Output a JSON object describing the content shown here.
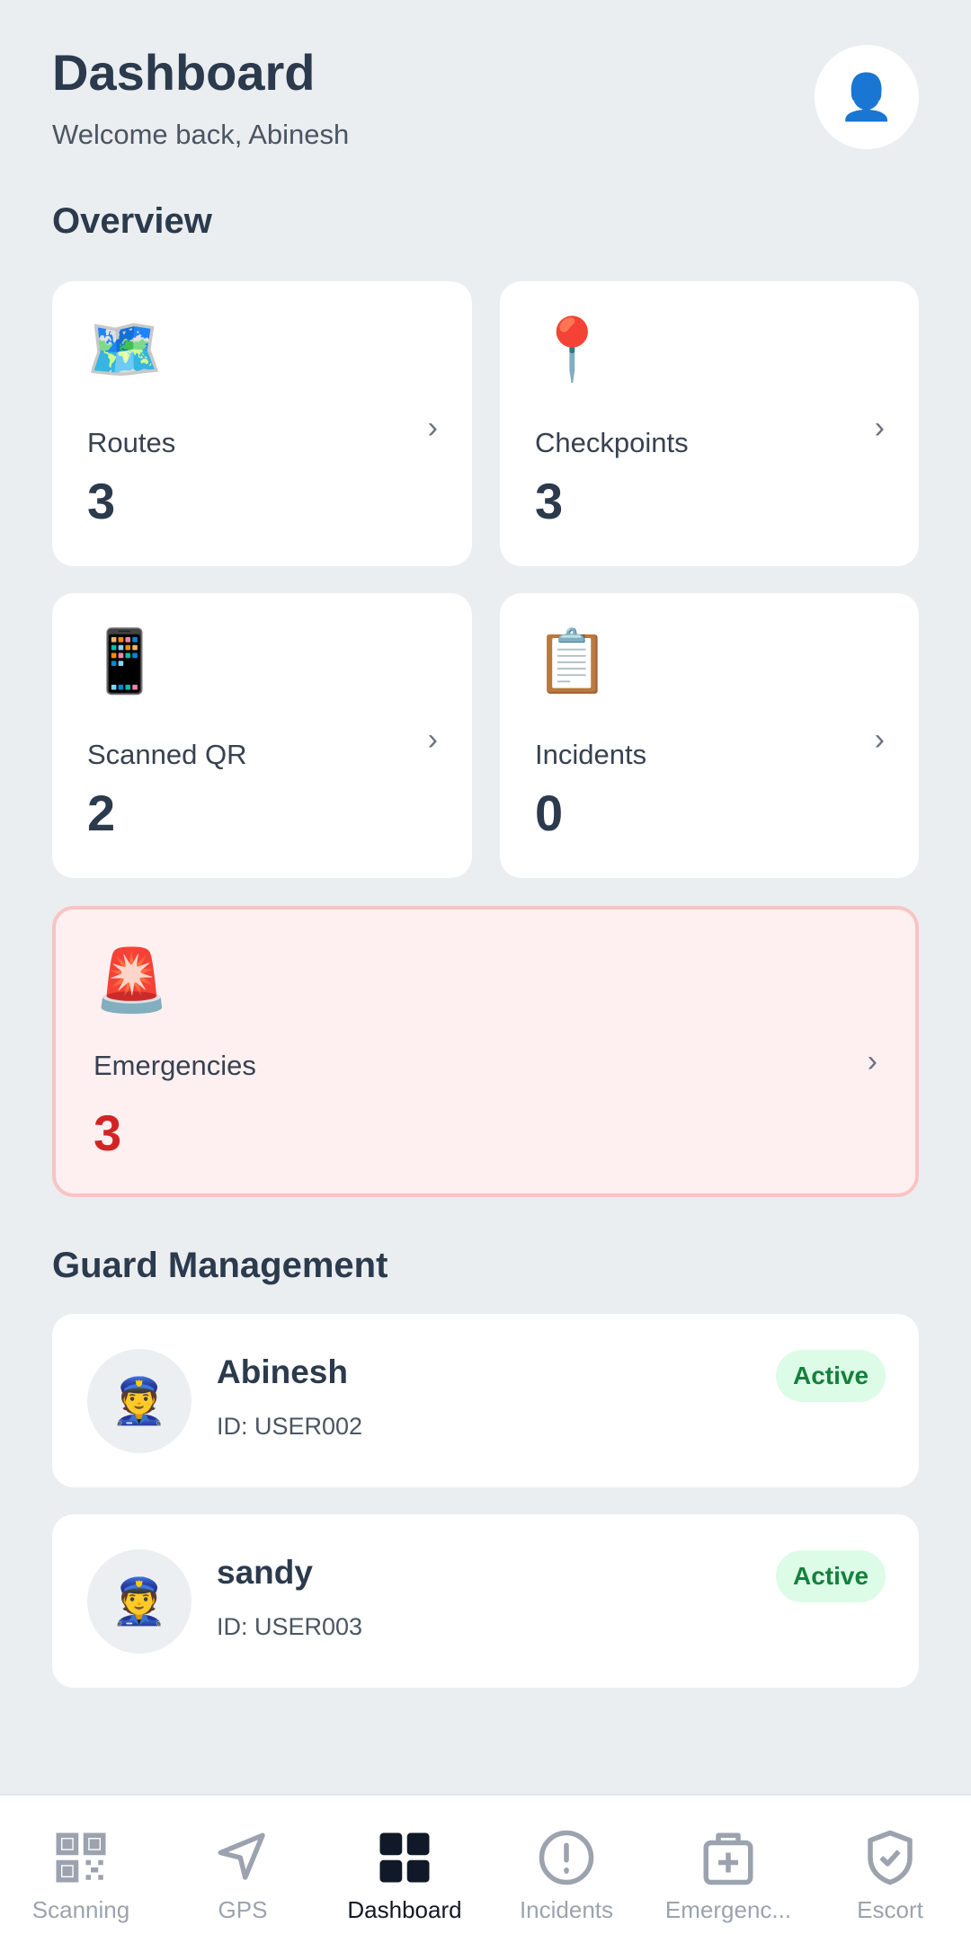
{
  "header": {
    "title": "Dashboard",
    "welcome": "Welcome back, Abinesh",
    "profile_icon": "👤"
  },
  "overview": {
    "heading": "Overview",
    "cards": [
      {
        "icon": "🗺️",
        "label": "Routes",
        "value": "3"
      },
      {
        "icon": "📍",
        "label": "Checkpoints",
        "value": "3"
      },
      {
        "icon": "📱",
        "label": "Scanned QR",
        "value": "2"
      },
      {
        "icon": "📋",
        "label": "Incidents",
        "value": "0"
      },
      {
        "icon": "🚨",
        "label": "Emergencies",
        "value": "3"
      }
    ]
  },
  "guards": {
    "heading": "Guard Management",
    "items": [
      {
        "avatar": "👮",
        "name": "Abinesh",
        "id": "ID: USER002",
        "status": "Active"
      },
      {
        "avatar": "👮",
        "name": "sandy",
        "id": "ID: USER003",
        "status": "Active"
      }
    ]
  },
  "nav": [
    {
      "label": "Scanning",
      "icon": "qr-code-icon"
    },
    {
      "label": "GPS",
      "icon": "navigation-arrow-icon"
    },
    {
      "label": "Dashboard",
      "icon": "grid-icon",
      "active": true
    },
    {
      "label": "Incidents",
      "icon": "alert-circle-icon"
    },
    {
      "label": "Emergenc...",
      "icon": "first-aid-kit-icon"
    },
    {
      "label": "Escort",
      "icon": "shield-check-icon"
    }
  ],
  "colors": {
    "accent_active": "#111827",
    "inactive": "#9ca3af",
    "emergency": "#d32424",
    "active_badge": "#15803d"
  }
}
